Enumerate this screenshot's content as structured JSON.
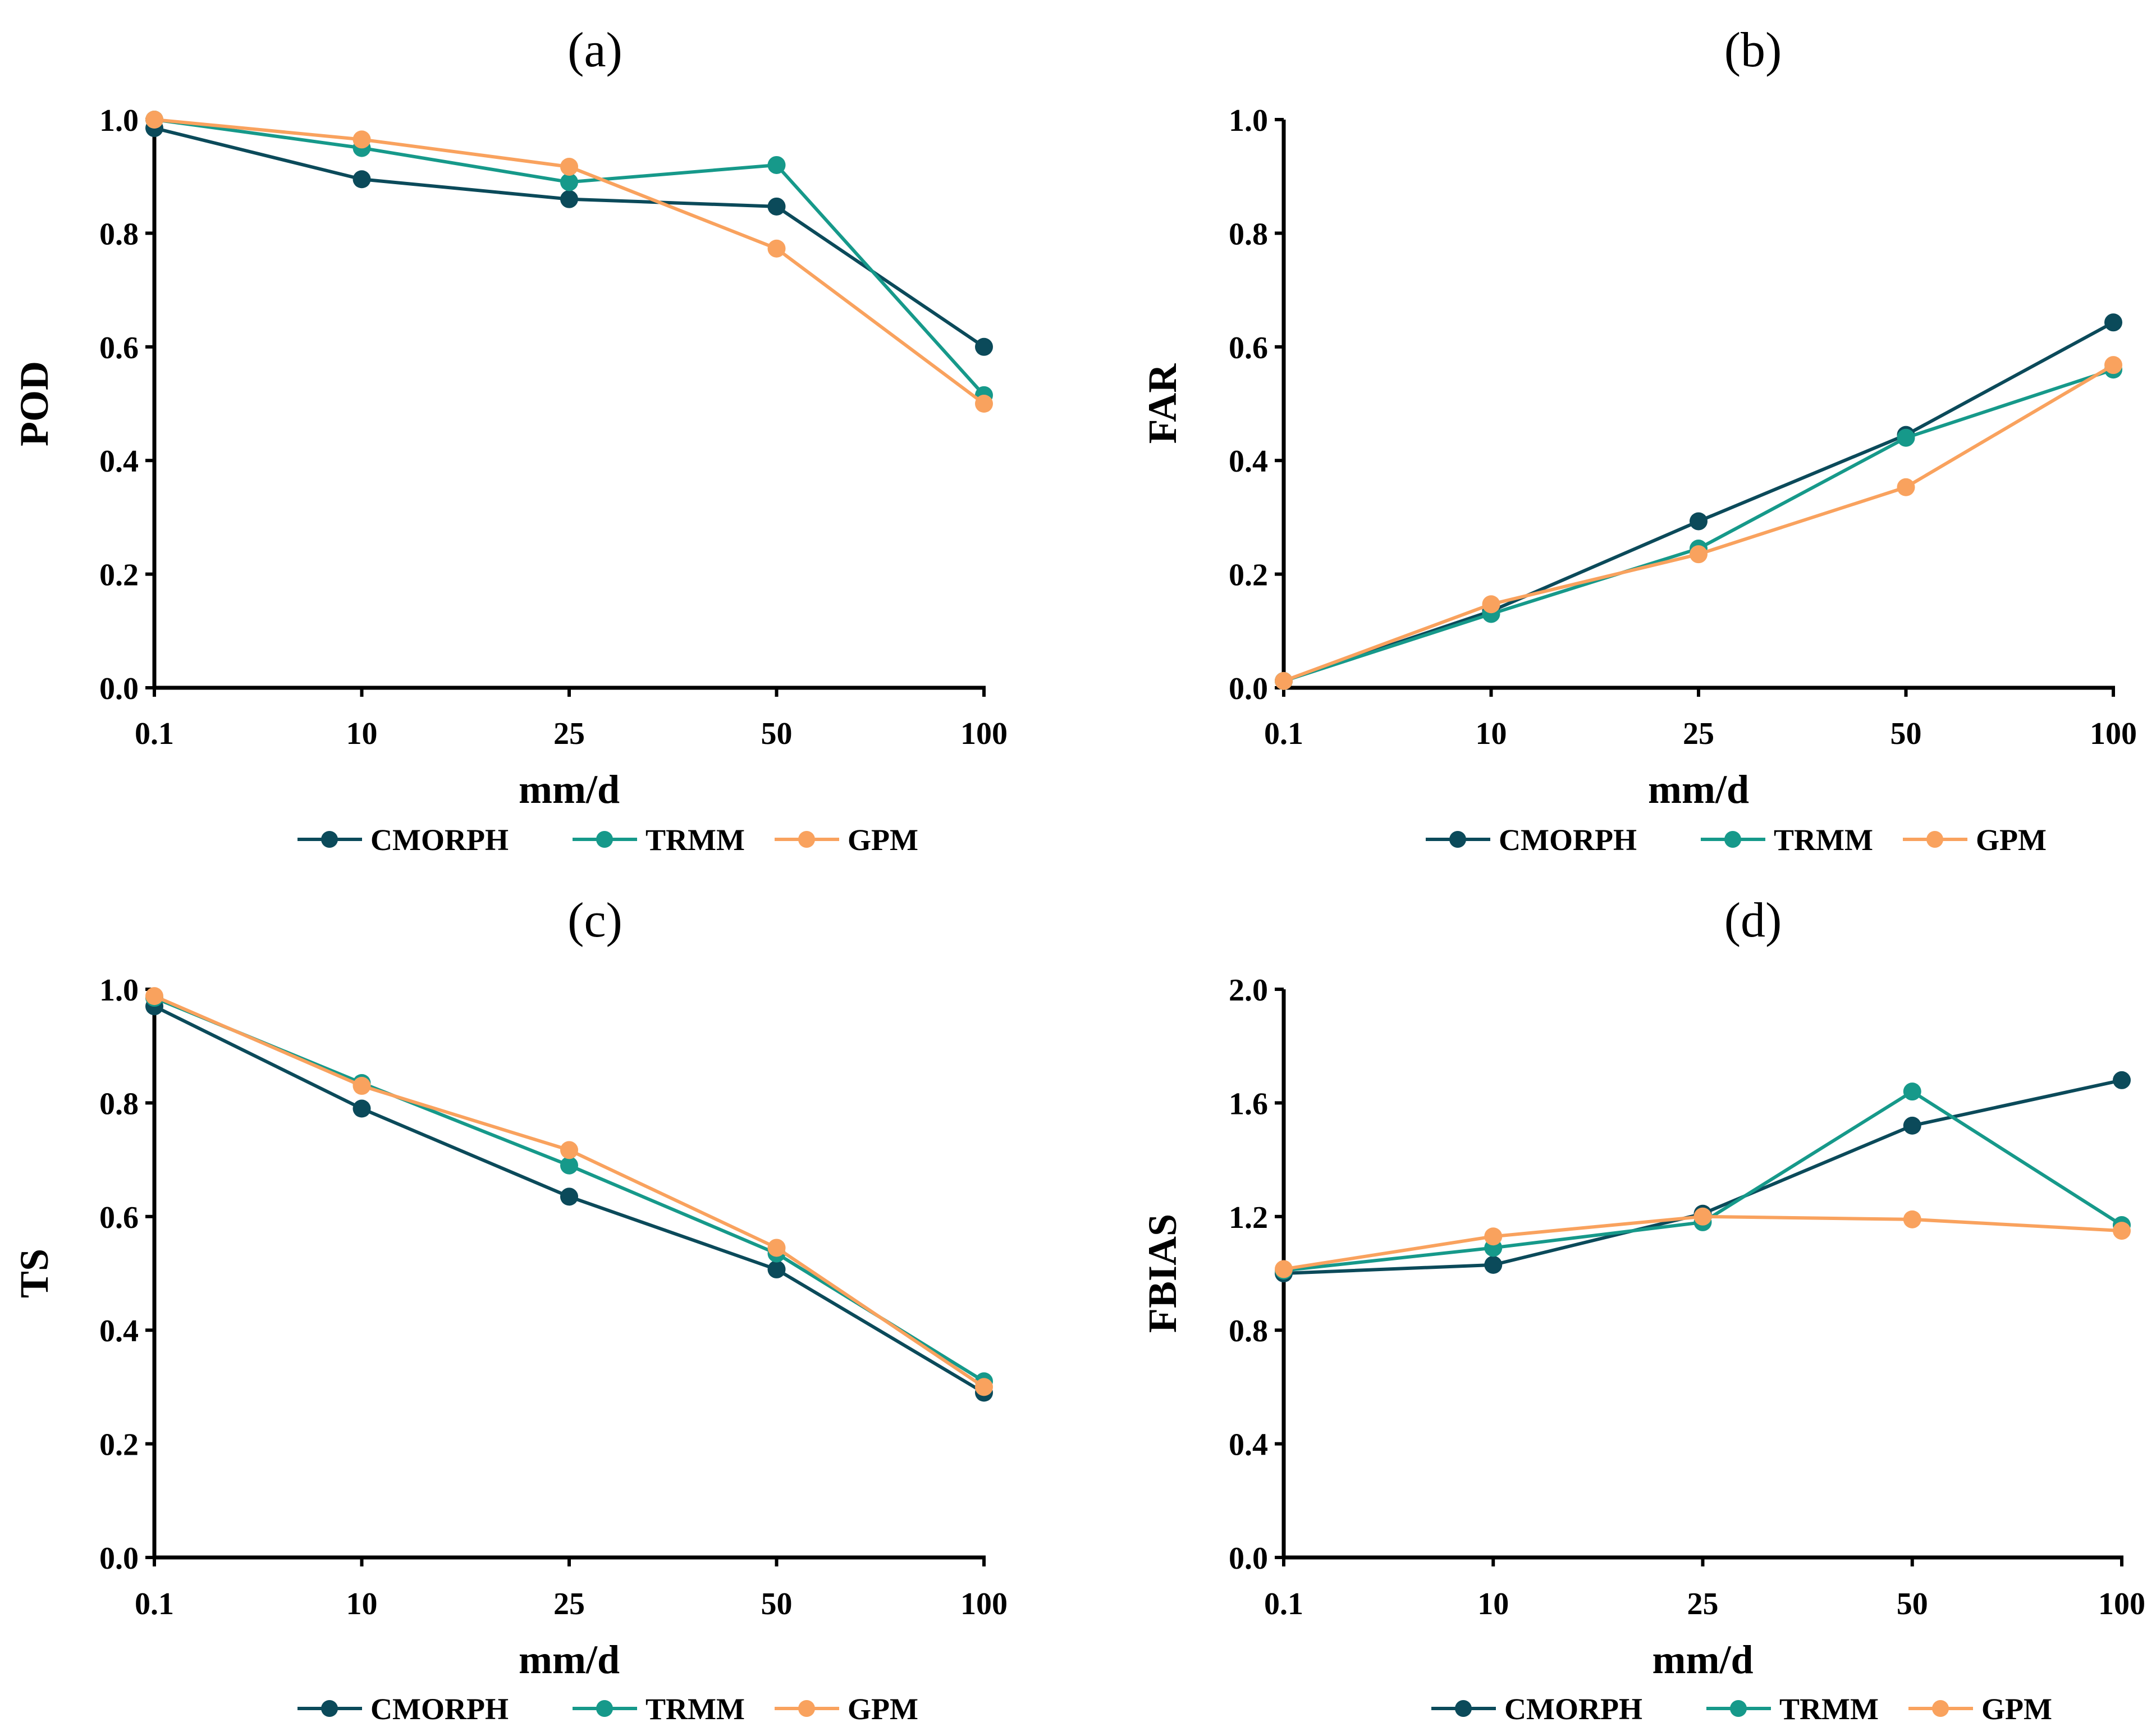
{
  "chart_data": [
    {
      "type": "line",
      "panel_label": "(a)",
      "xlabel": "mm/d",
      "ylabel": "POD",
      "categories": [
        "0.1",
        "10",
        "25",
        "50",
        "100"
      ],
      "ylim": [
        0,
        1.0
      ],
      "yticks": [
        "0.0",
        "0.2",
        "0.4",
        "0.6",
        "0.8",
        "1.0"
      ],
      "series": [
        {
          "name": "CMORPH",
          "color": "#0b4a5a",
          "values": [
            0.985,
            0.895,
            0.86,
            0.847,
            0.6
          ]
        },
        {
          "name": "TRMM",
          "color": "#16998a",
          "values": [
            1.0,
            0.95,
            0.89,
            0.92,
            0.515
          ]
        },
        {
          "name": "GPM",
          "color": "#f9a25e",
          "values": [
            1.0,
            0.965,
            0.917,
            0.773,
            0.5
          ]
        }
      ]
    },
    {
      "type": "line",
      "panel_label": "(b)",
      "xlabel": "mm/d",
      "ylabel": "FAR",
      "categories": [
        "0.1",
        "10",
        "25",
        "50",
        "100"
      ],
      "ylim": [
        0,
        1.0
      ],
      "yticks": [
        "0.0",
        "0.2",
        "0.4",
        "0.6",
        "0.8",
        "1.0"
      ],
      "series": [
        {
          "name": "CMORPH",
          "color": "#0b4a5a",
          "values": [
            0.012,
            0.135,
            0.293,
            0.445,
            0.643
          ]
        },
        {
          "name": "TRMM",
          "color": "#16998a",
          "values": [
            0.012,
            0.13,
            0.245,
            0.44,
            0.56
          ]
        },
        {
          "name": "GPM",
          "color": "#f9a25e",
          "values": [
            0.012,
            0.147,
            0.235,
            0.353,
            0.568
          ]
        }
      ]
    },
    {
      "type": "line",
      "panel_label": "(c)",
      "xlabel": "mm/d",
      "ylabel": "TS",
      "categories": [
        "0.1",
        "10",
        "25",
        "50",
        "100"
      ],
      "ylim": [
        0,
        1.0
      ],
      "yticks": [
        "0.0",
        "0.2",
        "0.4",
        "0.6",
        "0.8",
        "1.0"
      ],
      "series": [
        {
          "name": "CMORPH",
          "color": "#0b4a5a",
          "values": [
            0.97,
            0.79,
            0.635,
            0.507,
            0.29
          ]
        },
        {
          "name": "TRMM",
          "color": "#16998a",
          "values": [
            0.985,
            0.835,
            0.69,
            0.535,
            0.31
          ]
        },
        {
          "name": "GPM",
          "color": "#f9a25e",
          "values": [
            0.988,
            0.83,
            0.717,
            0.545,
            0.3
          ]
        }
      ]
    },
    {
      "type": "line",
      "panel_label": "(d)",
      "xlabel": "mm/d",
      "ylabel": "FBIAS",
      "categories": [
        "0.1",
        "10",
        "25",
        "50",
        "100"
      ],
      "ylim": [
        0,
        2.0
      ],
      "yticks": [
        "0.0",
        "0.4",
        "0.8",
        "1.2",
        "1.6",
        "2.0"
      ],
      "series": [
        {
          "name": "CMORPH",
          "color": "#0b4a5a",
          "values": [
            1.0,
            1.03,
            1.21,
            1.52,
            1.68
          ]
        },
        {
          "name": "TRMM",
          "color": "#16998a",
          "values": [
            1.01,
            1.09,
            1.18,
            1.64,
            1.17
          ]
        },
        {
          "name": "GPM",
          "color": "#f9a25e",
          "values": [
            1.015,
            1.13,
            1.2,
            1.19,
            1.15
          ]
        }
      ]
    }
  ]
}
